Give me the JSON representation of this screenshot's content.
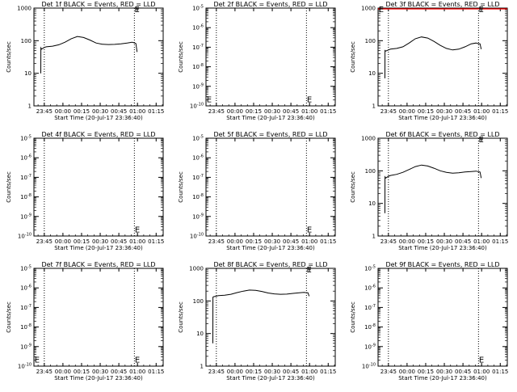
{
  "figure": {
    "background": "#ffffff",
    "ink_color": "#000000",
    "lld_color": "#ff0000"
  },
  "chart_data": [
    {
      "type": "line",
      "title": "Det 1f BLACK = Events, RED = LLD",
      "xlabel": "Start Time (20-Jul-17 23:36:40)",
      "ylabel": "Counts/sec",
      "x_ticks": [
        "23:45",
        "00:00",
        "00:15",
        "00:30",
        "00:45",
        "01:00",
        "01:15"
      ],
      "x_tick_minutes": [
        8.33,
        23.33,
        38.33,
        53.33,
        68.33,
        83.33,
        98.33
      ],
      "xlim_minutes": [
        0,
        104
      ],
      "yscale": "log",
      "ylim": [
        1,
        1000
      ],
      "y_ticks": [
        "1",
        "10",
        "100",
        "1000"
      ],
      "vlines_minutes": [
        8.33,
        80.83
      ],
      "has_data": true,
      "lld_visible": false,
      "series": [
        {
          "color": "#000000",
          "x_minutes": [
            5.5,
            5.6,
            6.2,
            8.3,
            10,
            15,
            20,
            25,
            30,
            35,
            40,
            45,
            50,
            55,
            60,
            65,
            70,
            75,
            78.9,
            80,
            82,
            83
          ],
          "y": [
            10,
            60,
            55,
            62,
            65,
            68,
            75,
            90,
            115,
            135,
            125,
            105,
            85,
            78,
            76,
            77,
            80,
            85,
            90,
            88,
            82,
            45
          ]
        }
      ],
      "e_markers": [
        {
          "text": "E",
          "x_minutes": 80.9,
          "y": 1000
        }
      ]
    },
    {
      "type": "line",
      "title": "Det 2f BLACK = Events, RED = LLD",
      "xlabel": "Start Time (20-Jul-17 23:36:40)",
      "ylabel": "Counts/sec",
      "x_ticks": [
        "23:45",
        "00:00",
        "00:15",
        "00:30",
        "00:45",
        "01:00",
        "01:15"
      ],
      "x_tick_minutes": [
        8.33,
        23.33,
        38.33,
        53.33,
        68.33,
        83.33,
        98.33
      ],
      "xlim_minutes": [
        0,
        104
      ],
      "yscale": "log",
      "ylim": [
        1e-10,
        1e-05
      ],
      "y_ticks": [
        "10^-10",
        "10^-9",
        "10^-8",
        "10^-7",
        "10^-6",
        "10^-5"
      ],
      "vlines_minutes": [
        8.33,
        80.83
      ],
      "has_data": false,
      "lld_visible": false,
      "series": [],
      "e_markers": [
        {
          "text": "E",
          "x_minutes": 0.5,
          "y": 2.5e-10
        },
        {
          "text": "E",
          "x_minutes": 81.2,
          "y": 2.5e-10
        }
      ]
    },
    {
      "type": "line",
      "title": "Det 3f BLACK = Events, RED = LLD",
      "xlabel": "Start Time (20-Jul-17 23:36:40)",
      "ylabel": "Counts/sec",
      "x_ticks": [
        "23:45",
        "00:00",
        "00:15",
        "00:30",
        "00:45",
        "01:00",
        "01:15"
      ],
      "x_tick_minutes": [
        8.33,
        23.33,
        38.33,
        53.33,
        68.33,
        83.33,
        98.33
      ],
      "xlim_minutes": [
        0,
        104
      ],
      "yscale": "log",
      "ylim": [
        1,
        1000
      ],
      "y_ticks": [
        "1",
        "10",
        "100",
        "1000"
      ],
      "vlines_minutes": [
        8.33,
        80.83
      ],
      "has_data": true,
      "lld_visible": true,
      "lld_y": 1000,
      "series": [
        {
          "color": "#000000",
          "x_minutes": [
            5.5,
            5.6,
            6.2,
            8.3,
            10,
            15,
            20,
            25,
            30,
            35,
            40,
            45,
            50,
            55,
            60,
            65,
            70,
            75,
            78.9,
            80,
            82,
            83
          ],
          "y": [
            7,
            50,
            48,
            52,
            55,
            58,
            65,
            85,
            115,
            130,
            120,
            95,
            72,
            58,
            52,
            55,
            65,
            80,
            85,
            82,
            80,
            55
          ]
        }
      ],
      "e_markers": [
        {
          "text": "E",
          "x_minutes": 0.5,
          "y": 1000
        },
        {
          "text": "E",
          "x_minutes": 80.9,
          "y": 1000
        }
      ]
    },
    {
      "type": "line",
      "title": "Det 4f BLACK = Events, RED = LLD",
      "xlabel": "Start Time (20-Jul-17 23:36:40)",
      "ylabel": "Counts/sec",
      "x_ticks": [
        "23:45",
        "00:00",
        "00:15",
        "00:30",
        "00:45",
        "01:00",
        "01:15"
      ],
      "x_tick_minutes": [
        8.33,
        23.33,
        38.33,
        53.33,
        68.33,
        83.33,
        98.33
      ],
      "xlim_minutes": [
        0,
        104
      ],
      "yscale": "log",
      "ylim": [
        1e-10,
        1e-05
      ],
      "y_ticks": [
        "10^-10",
        "10^-9",
        "10^-8",
        "10^-7",
        "10^-6",
        "10^-5"
      ],
      "vlines_minutes": [
        8.33,
        80.83
      ],
      "has_data": false,
      "lld_visible": false,
      "series": [],
      "e_markers": [
        {
          "text": "E",
          "x_minutes": 81.2,
          "y": 2.5e-10
        }
      ]
    },
    {
      "type": "line",
      "title": "Det 5f BLACK = Events, RED = LLD",
      "xlabel": "Start Time (20-Jul-17 23:36:40)",
      "ylabel": "Counts/sec",
      "x_ticks": [
        "23:45",
        "00:00",
        "00:15",
        "00:30",
        "00:45",
        "01:00",
        "01:15"
      ],
      "x_tick_minutes": [
        8.33,
        23.33,
        38.33,
        53.33,
        68.33,
        83.33,
        98.33
      ],
      "xlim_minutes": [
        0,
        104
      ],
      "yscale": "log",
      "ylim": [
        1e-10,
        1e-05
      ],
      "y_ticks": [
        "10^-10",
        "10^-9",
        "10^-8",
        "10^-7",
        "10^-6",
        "10^-5"
      ],
      "vlines_minutes": [
        8.33,
        80.83
      ],
      "has_data": false,
      "lld_visible": false,
      "series": [],
      "e_markers": [
        {
          "text": "E",
          "x_minutes": 81.2,
          "y": 2.5e-10
        }
      ]
    },
    {
      "type": "line",
      "title": "Det 6f BLACK = Events, RED = LLD",
      "xlabel": "Start Time (20-Jul-17 23:36:40)",
      "ylabel": "Counts/sec",
      "x_ticks": [
        "23:45",
        "00:00",
        "00:15",
        "00:30",
        "00:45",
        "01:00",
        "01:15"
      ],
      "x_tick_minutes": [
        8.33,
        23.33,
        38.33,
        53.33,
        68.33,
        83.33,
        98.33
      ],
      "xlim_minutes": [
        0,
        104
      ],
      "yscale": "log",
      "ylim": [
        1,
        1000
      ],
      "y_ticks": [
        "1",
        "10",
        "100",
        "1000"
      ],
      "vlines_minutes": [
        8.33,
        80.83
      ],
      "has_data": true,
      "lld_visible": false,
      "series": [
        {
          "color": "#000000",
          "x_minutes": [
            5.5,
            5.6,
            6.2,
            8.3,
            10,
            15,
            20,
            25,
            30,
            35,
            40,
            45,
            50,
            55,
            60,
            65,
            70,
            75,
            78.9,
            80,
            82,
            83
          ],
          "y": [
            5,
            65,
            60,
            68,
            72,
            78,
            90,
            110,
            135,
            150,
            140,
            120,
            100,
            90,
            85,
            87,
            92,
            95,
            98,
            95,
            92,
            60
          ]
        }
      ],
      "e_markers": [
        {
          "text": "E",
          "x_minutes": 80.9,
          "y": 1000
        }
      ]
    },
    {
      "type": "line",
      "title": "Det 7f BLACK = Events, RED = LLD",
      "xlabel": "Start Time (20-Jul-17 23:36:40)",
      "ylabel": "Counts/sec",
      "x_ticks": [
        "23:45",
        "00:00",
        "00:15",
        "00:30",
        "00:45",
        "01:00",
        "01:15"
      ],
      "x_tick_minutes": [
        8.33,
        23.33,
        38.33,
        53.33,
        68.33,
        83.33,
        98.33
      ],
      "xlim_minutes": [
        0,
        104
      ],
      "yscale": "log",
      "ylim": [
        1e-10,
        1e-05
      ],
      "y_ticks": [
        "10^-10",
        "10^-9",
        "10^-8",
        "10^-7",
        "10^-6",
        "10^-5"
      ],
      "vlines_minutes": [
        8.33,
        80.83
      ],
      "has_data": false,
      "lld_visible": false,
      "series": [],
      "e_markers": [
        {
          "text": "E",
          "x_minutes": 0.5,
          "y": 2.5e-10
        },
        {
          "text": "E",
          "x_minutes": 81.2,
          "y": 2.5e-10
        }
      ]
    },
    {
      "type": "line",
      "title": "Det 8f BLACK = Events, RED = LLD",
      "xlabel": "Start Time (20-Jul-17 23:36:40)",
      "ylabel": "Counts/sec",
      "x_ticks": [
        "23:45",
        "00:00",
        "00:15",
        "00:30",
        "00:45",
        "01:00",
        "01:15"
      ],
      "x_tick_minutes": [
        8.33,
        23.33,
        38.33,
        53.33,
        68.33,
        83.33,
        98.33
      ],
      "xlim_minutes": [
        0,
        104
      ],
      "yscale": "log",
      "ylim": [
        1,
        1000
      ],
      "y_ticks": [
        "1",
        "10",
        "100",
        "1000"
      ],
      "vlines_minutes": [
        8.33,
        80.83
      ],
      "has_data": true,
      "lld_visible": false,
      "series": [
        {
          "color": "#000000",
          "x_minutes": [
            5.5,
            5.6,
            6.2,
            8.3,
            10,
            15,
            20,
            25,
            30,
            35,
            40,
            45,
            50,
            55,
            60,
            65,
            70,
            75,
            78.9,
            80,
            82,
            83
          ],
          "y": [
            5,
            130,
            135,
            140,
            145,
            150,
            160,
            180,
            200,
            215,
            210,
            195,
            175,
            165,
            160,
            162,
            170,
            178,
            182,
            180,
            178,
            140
          ]
        }
      ],
      "e_markers": [
        {
          "text": "E",
          "x_minutes": 80.9,
          "y": 1000
        }
      ]
    },
    {
      "type": "line",
      "title": "Det 9f BLACK = Events, RED = LLD",
      "xlabel": "Start Time (20-Jul-17 23:36:40)",
      "ylabel": "Counts/sec",
      "x_ticks": [
        "23:45",
        "00:00",
        "00:15",
        "00:30",
        "00:45",
        "01:00",
        "01:15"
      ],
      "x_tick_minutes": [
        8.33,
        23.33,
        38.33,
        53.33,
        68.33,
        83.33,
        98.33
      ],
      "xlim_minutes": [
        0,
        104
      ],
      "yscale": "log",
      "ylim": [
        1e-10,
        1e-05
      ],
      "y_ticks": [
        "10^-10",
        "10^-9",
        "10^-8",
        "10^-7",
        "10^-6",
        "10^-5"
      ],
      "vlines_minutes": [
        8.33,
        80.83
      ],
      "has_data": false,
      "lld_visible": false,
      "series": [],
      "e_markers": [
        {
          "text": "E",
          "x_minutes": 81.2,
          "y": 2.5e-10
        }
      ]
    }
  ]
}
